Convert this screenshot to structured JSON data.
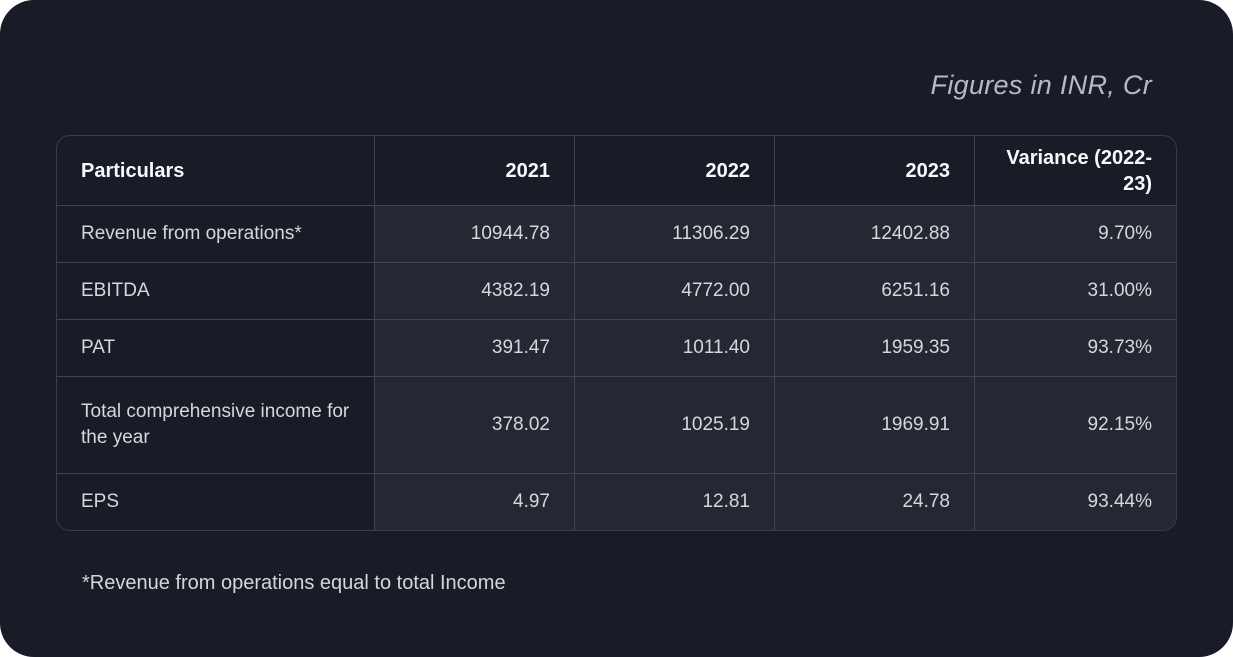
{
  "units_note": "Figures in INR, Cr",
  "footnote": "*Revenue from operations equal to total Income",
  "chart_data": {
    "type": "table",
    "caption": "Figures in INR, Cr",
    "columns": [
      "Particulars",
      "2021",
      "2022",
      "2023",
      "Variance (2022-23)"
    ],
    "rows": [
      {
        "label": "Revenue from operations*",
        "values": [
          "10944.78",
          "11306.29",
          "12402.88",
          "9.70%"
        ]
      },
      {
        "label": "EBITDA",
        "values": [
          "4382.19",
          "4772.00",
          "6251.16",
          "31.00%"
        ]
      },
      {
        "label": "PAT",
        "values": [
          "391.47",
          "1011.40",
          "1959.35",
          "93.73%"
        ]
      },
      {
        "label": "Total comprehensive income for the year",
        "values": [
          "378.02",
          "1025.19",
          "1969.91",
          "92.15%"
        ]
      },
      {
        "label": "EPS",
        "values": [
          "4.97",
          "12.81",
          "24.78",
          "93.44%"
        ]
      }
    ]
  },
  "colors": {
    "card_background": "#191b26",
    "value_cell_background": "#252733",
    "grid_line": "#424451",
    "outer_border": "#3a3c48",
    "header_text": "#f7f8fa",
    "body_text": "#d5d7dd",
    "muted_text": "#b7bac4"
  }
}
